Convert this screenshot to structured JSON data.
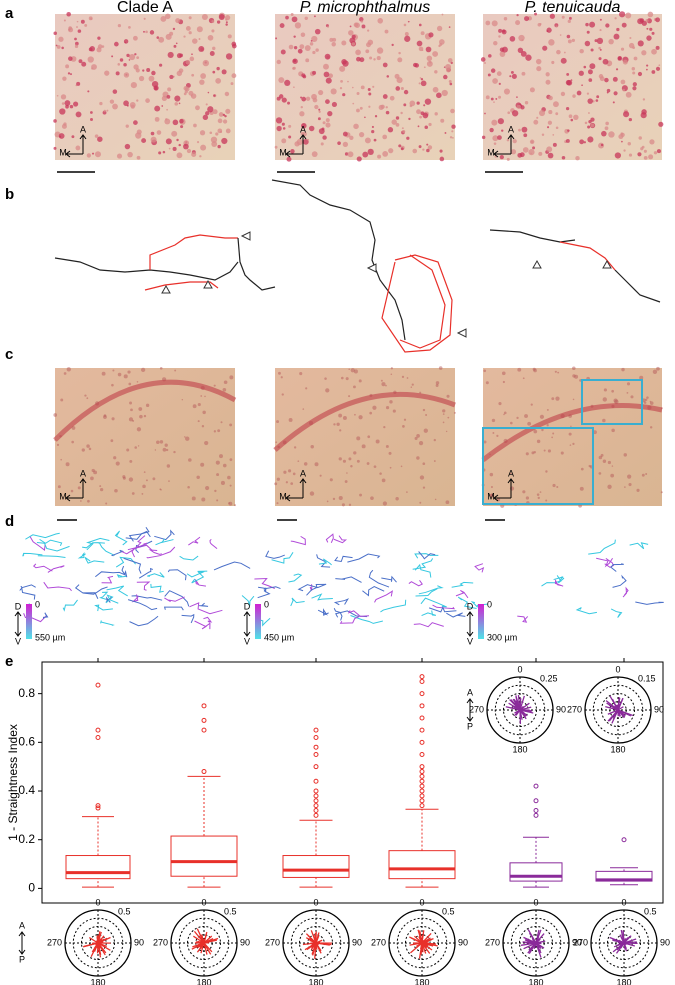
{
  "panel_labels": [
    "a",
    "b",
    "c",
    "d",
    "e"
  ],
  "columns": [
    "Clade A",
    "P. microphthalmus",
    "P. tenuicauda"
  ],
  "orientation": {
    "anterior": "A",
    "medial": "M",
    "dorsal": "D",
    "ventral": "V",
    "posterior": "P"
  },
  "depth": {
    "zero": "0",
    "scales": [
      "550 µm",
      "450 µm",
      "300 µm"
    ]
  },
  "polar": {
    "angles": [
      "0",
      "90",
      "180",
      "270"
    ],
    "top_radii": [
      "0.25",
      "0.15"
    ],
    "bottom_radius": "0.5"
  },
  "chart_data": {
    "type": "box",
    "ylabel": "1 - Straightness Index",
    "ylim": [
      -0.06,
      0.93
    ],
    "yticks": [
      0,
      0.2,
      0.4,
      0.6,
      0.8
    ],
    "boxes": [
      {
        "color": "#e8302a",
        "min": 0.005,
        "q1": 0.04,
        "median": 0.065,
        "q3": 0.135,
        "max": 0.295,
        "outliers": [
          0.33,
          0.34,
          0.62,
          0.65,
          0.835
        ]
      },
      {
        "color": "#e8302a",
        "min": 0.005,
        "q1": 0.05,
        "median": 0.11,
        "q3": 0.215,
        "max": 0.46,
        "outliers": [
          0.48,
          0.65,
          0.69,
          0.75
        ]
      },
      {
        "color": "#e8302a",
        "min": 0.005,
        "q1": 0.045,
        "median": 0.075,
        "q3": 0.135,
        "max": 0.28,
        "outliers": [
          0.3,
          0.32,
          0.34,
          0.36,
          0.38,
          0.4,
          0.44,
          0.5,
          0.55,
          0.58,
          0.62,
          0.65
        ]
      },
      {
        "color": "#e8302a",
        "min": 0.005,
        "q1": 0.04,
        "median": 0.08,
        "q3": 0.155,
        "max": 0.325,
        "outliers": [
          0.34,
          0.36,
          0.38,
          0.4,
          0.42,
          0.44,
          0.46,
          0.48,
          0.5,
          0.55,
          0.6,
          0.65,
          0.7,
          0.75,
          0.8,
          0.85,
          0.87
        ]
      },
      {
        "color": "#8a2a9a",
        "min": 0.005,
        "q1": 0.03,
        "median": 0.05,
        "q3": 0.105,
        "max": 0.21,
        "outliers": [
          0.3,
          0.32,
          0.36,
          0.42
        ]
      },
      {
        "color": "#8a2a9a",
        "min": 0.015,
        "q1": 0.03,
        "median": 0.035,
        "q3": 0.07,
        "max": 0.085,
        "outliers": [
          0.2
        ]
      }
    ]
  }
}
